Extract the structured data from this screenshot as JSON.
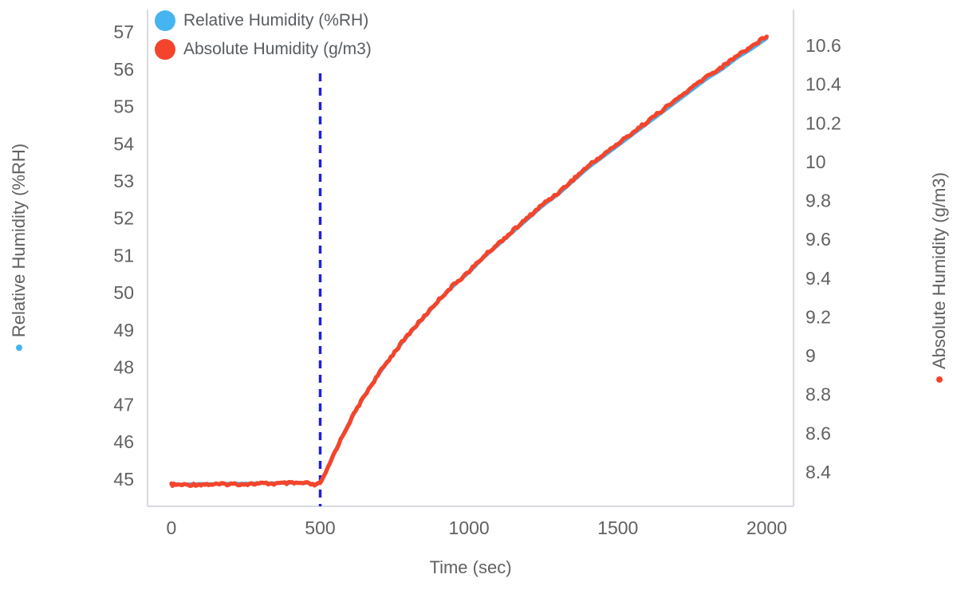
{
  "chart_data": {
    "type": "line",
    "title": "",
    "xlabel": "Time (sec)",
    "ylabel_left": "Relative Humidity (%RH)",
    "ylabel_right": "Absolute Humidity (g/m3)",
    "x_ticks": [
      0,
      500,
      1000,
      1500,
      2000
    ],
    "y_left_ticks": [
      45,
      46,
      47,
      48,
      49,
      50,
      51,
      52,
      53,
      54,
      55,
      56,
      57
    ],
    "y_right_ticks": [
      8.4,
      8.6,
      8.8,
      9,
      9.2,
      9.4,
      9.6,
      9.8,
      10,
      10.2,
      10.4,
      10.6
    ],
    "x_range": [
      -80,
      2090
    ],
    "y_left_range": [
      44.27,
      57.6
    ],
    "y_right_range": [
      8.223,
      10.785
    ],
    "grid": false,
    "legend_position": "top-left",
    "annotation_line": {
      "x": 500,
      "color": "#2020dd",
      "style": "dashed"
    },
    "x": [
      0,
      50,
      100,
      150,
      200,
      250,
      300,
      350,
      400,
      450,
      500,
      550,
      600,
      650,
      700,
      750,
      800,
      850,
      900,
      950,
      1000,
      1050,
      1100,
      1150,
      1200,
      1250,
      1300,
      1350,
      1400,
      1450,
      1500,
      1550,
      1600,
      1650,
      1700,
      1750,
      1800,
      1850,
      1900,
      1950,
      2000
    ],
    "series": [
      {
        "name": "Relative Humidity (%RH)",
        "axis": "left",
        "color": "#45b4f1",
        "values": [
          44.86,
          44.86,
          44.87,
          44.87,
          44.88,
          44.88,
          44.89,
          44.89,
          44.9,
          44.9,
          44.92,
          45.75,
          46.55,
          47.25,
          47.85,
          48.4,
          48.9,
          49.35,
          49.8,
          50.2,
          50.55,
          50.95,
          51.3,
          51.65,
          52,
          52.35,
          52.65,
          53,
          53.35,
          53.65,
          53.95,
          54.25,
          54.55,
          54.85,
          55.15,
          55.45,
          55.75,
          56,
          56.3,
          56.55,
          56.83
        ]
      },
      {
        "name": "Absolute Humidity (g/m3)",
        "axis": "right",
        "color": "#f4452c",
        "values": [
          8.334,
          8.334,
          8.336,
          8.336,
          8.338,
          8.338,
          8.34,
          8.34,
          8.342,
          8.342,
          8.346,
          8.506,
          8.661,
          8.796,
          8.913,
          9.019,
          9.116,
          9.203,
          9.29,
          9.367,
          9.435,
          9.512,
          9.58,
          9.648,
          9.715,
          9.783,
          9.841,
          9.909,
          9.977,
          10.035,
          10.093,
          10.151,
          10.209,
          10.267,
          10.325,
          10.383,
          10.441,
          10.489,
          10.547,
          10.596,
          10.65
        ]
      }
    ]
  }
}
